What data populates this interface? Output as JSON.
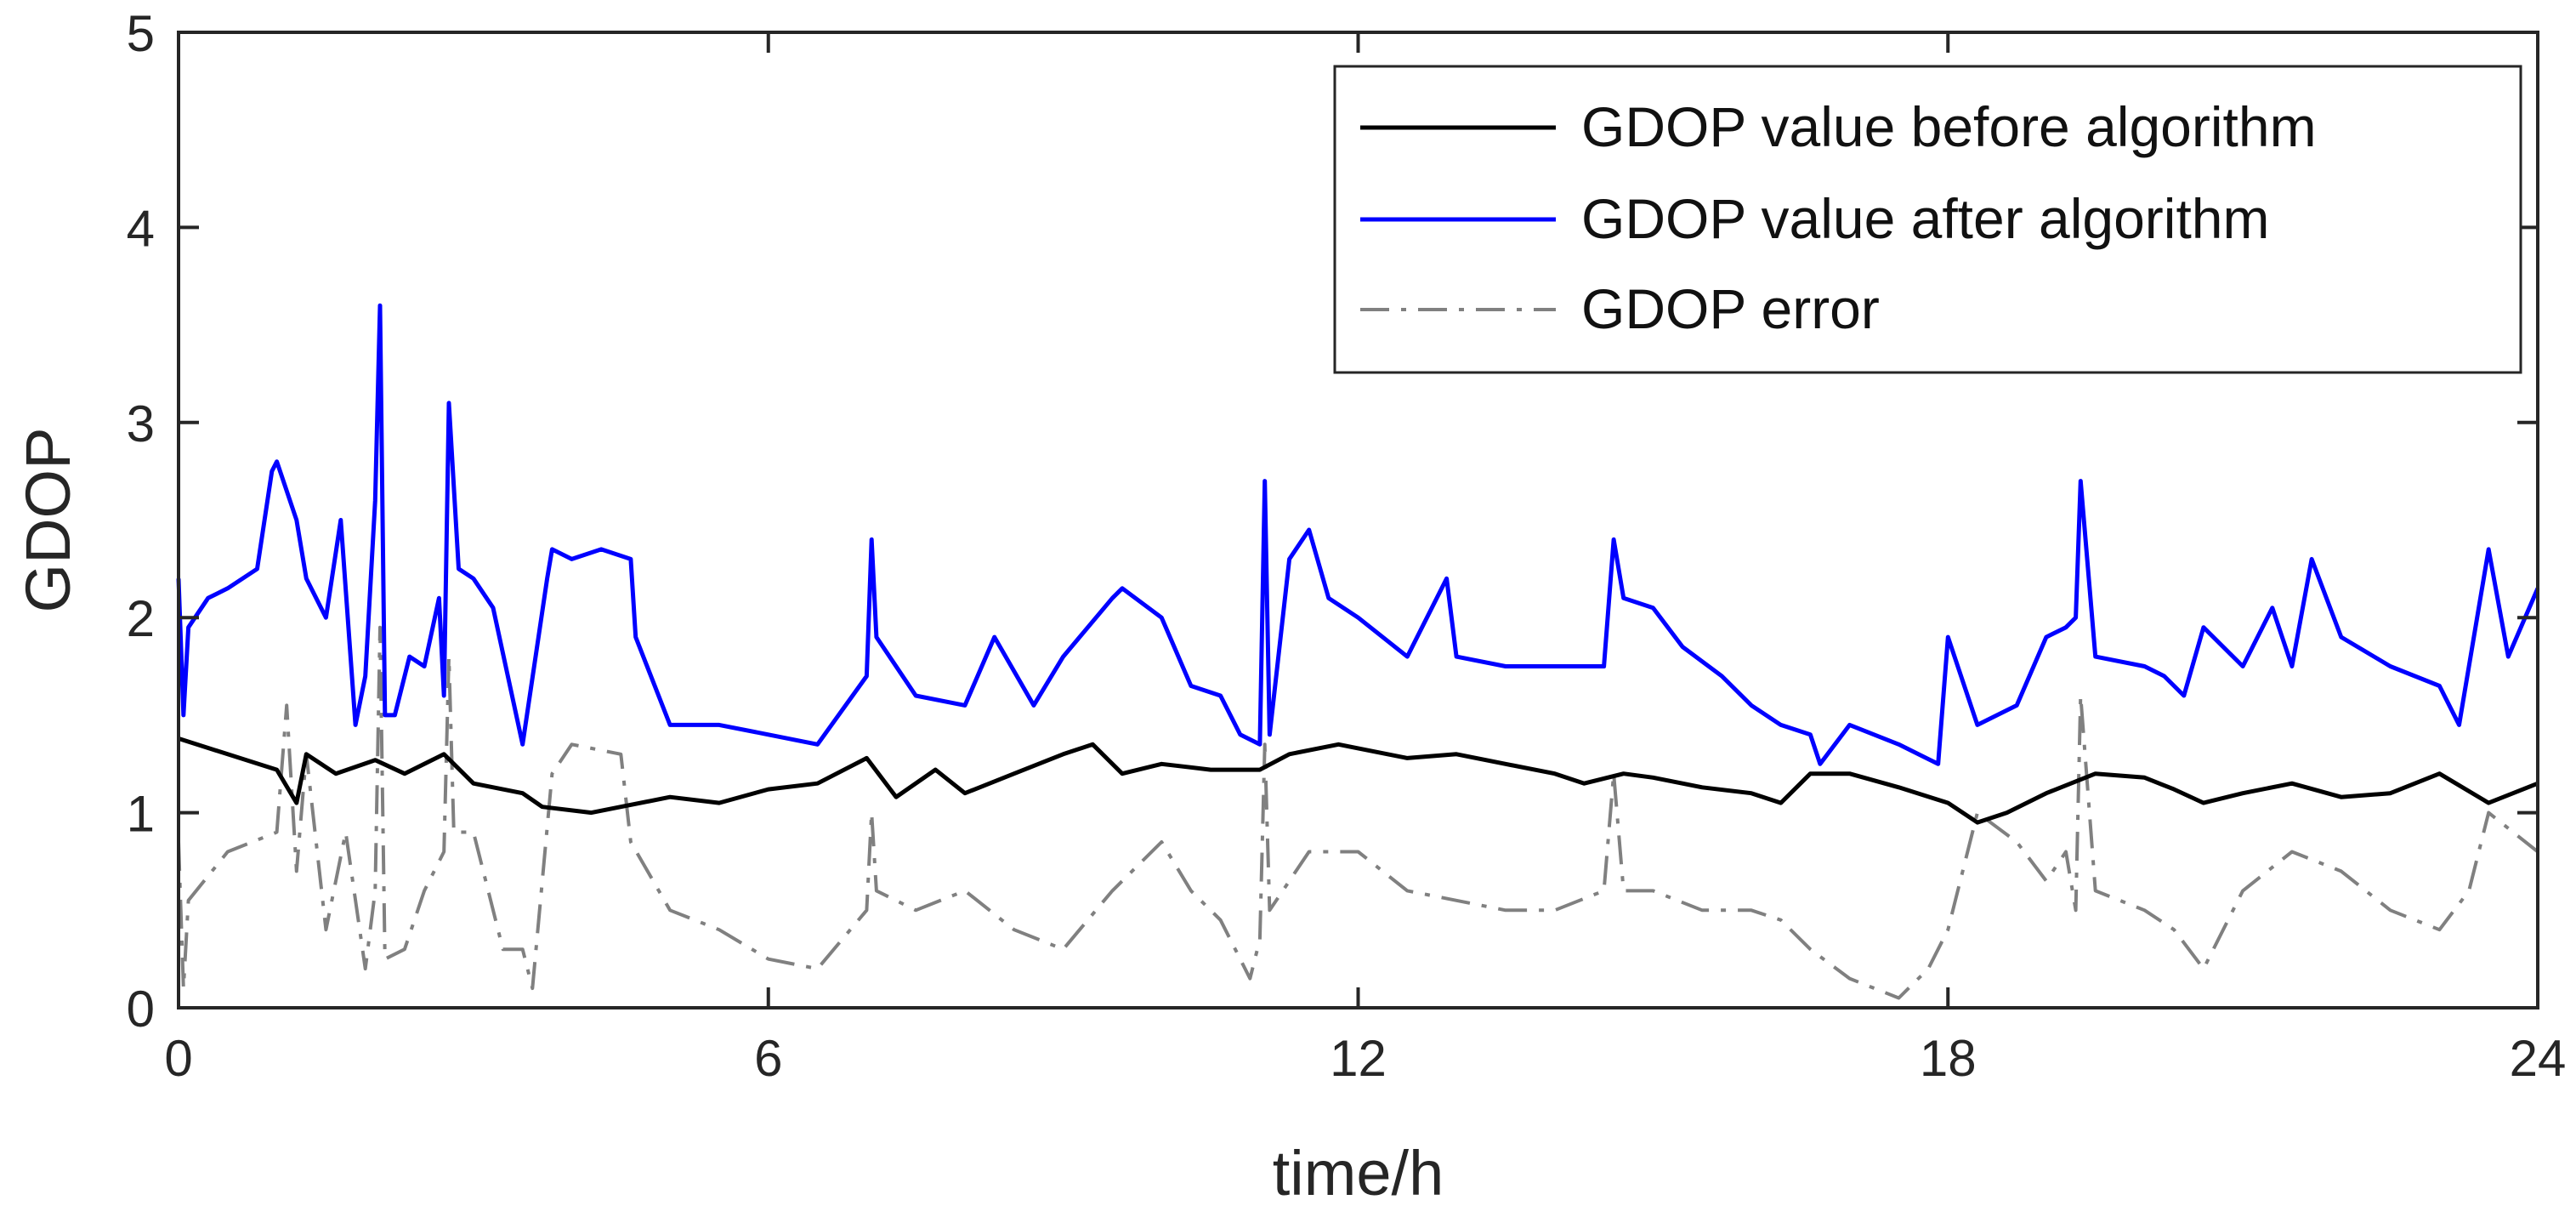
{
  "chart_data": {
    "type": "line",
    "title": "",
    "xlabel": "time/h",
    "ylabel": "GDOP",
    "xlim": [
      0,
      24
    ],
    "ylim": [
      0,
      5
    ],
    "xticks": [
      0,
      6,
      12,
      18,
      24
    ],
    "yticks": [
      0,
      1,
      2,
      3,
      4,
      5
    ],
    "grid": false,
    "legend_position": "top-right",
    "series": [
      {
        "name": "GDOP value before algorithm",
        "color": "#000000",
        "style": "solid",
        "x": [
          0,
          0.5,
          1.0,
          1.2,
          1.3,
          1.6,
          2.0,
          2.3,
          2.7,
          3.0,
          3.5,
          3.7,
          4.2,
          5.0,
          5.5,
          6.0,
          6.5,
          7.0,
          7.3,
          7.7,
          8.0,
          8.5,
          9.0,
          9.3,
          9.6,
          10.0,
          10.5,
          11.0,
          11.3,
          11.8,
          12.0,
          12.5,
          13.0,
          13.5,
          14.0,
          14.3,
          14.7,
          15.0,
          15.5,
          16.0,
          16.3,
          16.6,
          17.0,
          17.5,
          18.0,
          18.3,
          18.6,
          19.0,
          19.5,
          20.0,
          20.3,
          20.6,
          21.0,
          21.5,
          22.0,
          22.5,
          23.0,
          23.5,
          24.0
        ],
        "y": [
          1.38,
          1.3,
          1.22,
          1.05,
          1.3,
          1.2,
          1.27,
          1.2,
          1.3,
          1.15,
          1.1,
          1.03,
          1.0,
          1.08,
          1.05,
          1.12,
          1.15,
          1.28,
          1.08,
          1.22,
          1.1,
          1.2,
          1.3,
          1.35,
          1.2,
          1.25,
          1.22,
          1.22,
          1.3,
          1.35,
          1.33,
          1.28,
          1.3,
          1.25,
          1.2,
          1.15,
          1.2,
          1.18,
          1.13,
          1.1,
          1.05,
          1.2,
          1.2,
          1.13,
          1.05,
          0.95,
          1.0,
          1.1,
          1.2,
          1.18,
          1.12,
          1.05,
          1.1,
          1.15,
          1.08,
          1.1,
          1.2,
          1.05,
          1.15
        ]
      },
      {
        "name": "GDOP value after algorithm",
        "color": "#0000ff",
        "style": "solid",
        "x": [
          0,
          0.05,
          0.1,
          0.3,
          0.5,
          0.8,
          0.95,
          1.0,
          1.2,
          1.3,
          1.5,
          1.65,
          1.8,
          1.9,
          2.0,
          2.05,
          2.1,
          2.2,
          2.35,
          2.5,
          2.65,
          2.7,
          2.75,
          2.85,
          3.0,
          3.2,
          3.5,
          3.75,
          3.8,
          4.0,
          4.3,
          4.6,
          4.65,
          5.0,
          5.5,
          6.0,
          6.5,
          7.0,
          7.05,
          7.1,
          7.5,
          8.0,
          8.3,
          8.7,
          9.0,
          9.5,
          9.6,
          10.0,
          10.3,
          10.6,
          10.8,
          11.0,
          11.05,
          11.1,
          11.3,
          11.5,
          11.7,
          12.0,
          12.5,
          12.9,
          13.0,
          13.5,
          14.0,
          14.5,
          14.6,
          14.7,
          15.0,
          15.3,
          15.7,
          16.0,
          16.3,
          16.6,
          16.7,
          17.0,
          17.5,
          17.9,
          18.0,
          18.3,
          18.7,
          19.0,
          19.2,
          19.3,
          19.35,
          19.5,
          20.0,
          20.2,
          20.4,
          20.6,
          21.0,
          21.3,
          21.5,
          21.7,
          22.0,
          22.5,
          23.0,
          23.2,
          23.5,
          23.7,
          24.0
        ],
        "y": [
          2.2,
          1.5,
          1.95,
          2.1,
          2.15,
          2.25,
          2.75,
          2.8,
          2.5,
          2.2,
          2.0,
          2.5,
          1.45,
          1.7,
          2.6,
          3.6,
          1.5,
          1.5,
          1.8,
          1.75,
          2.1,
          1.6,
          3.1,
          2.25,
          2.2,
          2.05,
          1.35,
          2.2,
          2.35,
          2.3,
          2.35,
          2.3,
          1.9,
          1.45,
          1.45,
          1.4,
          1.35,
          1.7,
          2.4,
          1.9,
          1.6,
          1.55,
          1.9,
          1.55,
          1.8,
          2.1,
          2.15,
          2.0,
          1.65,
          1.6,
          1.4,
          1.35,
          2.7,
          1.4,
          2.3,
          2.45,
          2.1,
          2.0,
          1.8,
          2.2,
          1.8,
          1.75,
          1.75,
          1.75,
          2.4,
          2.1,
          2.05,
          1.85,
          1.7,
          1.55,
          1.45,
          1.4,
          1.25,
          1.45,
          1.35,
          1.25,
          1.9,
          1.45,
          1.55,
          1.9,
          1.95,
          2.0,
          2.7,
          1.8,
          1.75,
          1.7,
          1.6,
          1.95,
          1.75,
          2.05,
          1.75,
          2.3,
          1.9,
          1.75,
          1.65,
          1.45,
          2.35,
          1.8,
          2.15
        ]
      },
      {
        "name": "GDOP error",
        "color": "#808080",
        "style": "dashdot",
        "x": [
          0,
          0.05,
          0.1,
          0.5,
          1.0,
          1.1,
          1.2,
          1.3,
          1.5,
          1.7,
          1.9,
          2.0,
          2.05,
          2.1,
          2.3,
          2.5,
          2.7,
          2.75,
          2.8,
          3.0,
          3.3,
          3.5,
          3.6,
          3.8,
          4.0,
          4.5,
          4.6,
          5.0,
          5.5,
          6.0,
          6.5,
          7.0,
          7.05,
          7.1,
          7.5,
          8.0,
          8.5,
          9.0,
          9.5,
          10.0,
          10.3,
          10.6,
          10.9,
          11.0,
          11.05,
          11.1,
          11.5,
          12.0,
          12.5,
          13.0,
          13.5,
          14.0,
          14.5,
          14.6,
          14.7,
          15.0,
          15.5,
          16.0,
          16.3,
          16.6,
          17.0,
          17.5,
          17.8,
          18.0,
          18.3,
          18.7,
          19.0,
          19.2,
          19.3,
          19.35,
          19.5,
          20.0,
          20.3,
          20.6,
          21.0,
          21.5,
          22.0,
          22.5,
          23.0,
          23.3,
          23.5,
          24.0
        ],
        "y": [
          0.85,
          0.1,
          0.55,
          0.8,
          0.9,
          1.55,
          0.7,
          1.3,
          0.4,
          0.9,
          0.2,
          0.6,
          1.95,
          0.25,
          0.3,
          0.6,
          0.8,
          1.8,
          0.9,
          0.9,
          0.3,
          0.3,
          0.1,
          1.2,
          1.35,
          1.3,
          0.85,
          0.5,
          0.4,
          0.25,
          0.2,
          0.5,
          1.0,
          0.6,
          0.5,
          0.6,
          0.4,
          0.3,
          0.6,
          0.85,
          0.6,
          0.45,
          0.15,
          0.35,
          1.35,
          0.5,
          0.8,
          0.8,
          0.6,
          0.55,
          0.5,
          0.5,
          0.6,
          1.2,
          0.6,
          0.6,
          0.5,
          0.5,
          0.45,
          0.3,
          0.15,
          0.05,
          0.2,
          0.4,
          1.0,
          0.85,
          0.65,
          0.8,
          0.5,
          1.6,
          0.6,
          0.5,
          0.4,
          0.2,
          0.6,
          0.8,
          0.7,
          0.5,
          0.4,
          0.6,
          1.0,
          0.8
        ]
      }
    ]
  }
}
